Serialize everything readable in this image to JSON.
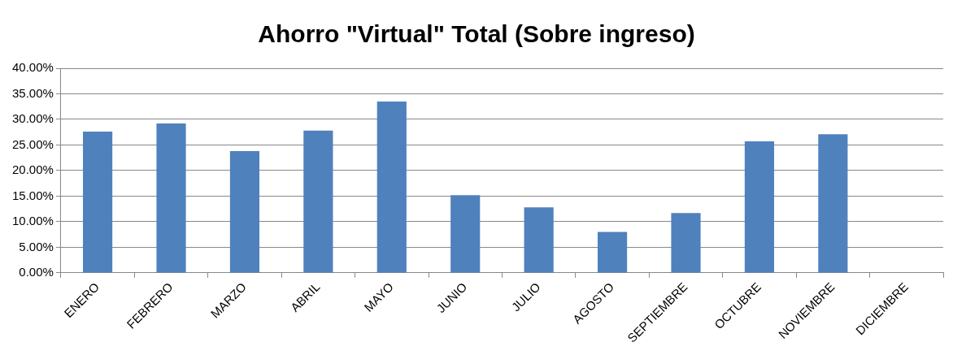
{
  "chart_data": {
    "type": "bar",
    "title": "Ahorro \"Virtual\" Total (Sobre ingreso)",
    "categories": [
      "ENERO",
      "FEBRERO",
      "MARZO",
      "ABRIL",
      "MAYO",
      "JUNIO",
      "JULIO",
      "AGOSTO",
      "SEPTIEMBRE",
      "OCTUBRE",
      "NOVIEMBRE",
      "DICIEMBRE"
    ],
    "values": [
      27.6,
      29.2,
      23.8,
      27.8,
      33.5,
      15.2,
      12.8,
      8.0,
      11.7,
      25.7,
      27.1,
      null
    ],
    "color": "#4f81bd",
    "ylim": [
      0,
      40
    ],
    "yticks": [
      {
        "value": 0,
        "label": "0.00%"
      },
      {
        "value": 5,
        "label": "5.00%"
      },
      {
        "value": 10,
        "label": "10.00%"
      },
      {
        "value": 15,
        "label": "15.00%"
      },
      {
        "value": 20,
        "label": "20.00%"
      },
      {
        "value": 25,
        "label": "25.00%"
      },
      {
        "value": 30,
        "label": "30.00%"
      },
      {
        "value": 35,
        "label": "35.00%"
      },
      {
        "value": 40,
        "label": "40.00%"
      }
    ],
    "grid": "y",
    "legend": false
  }
}
